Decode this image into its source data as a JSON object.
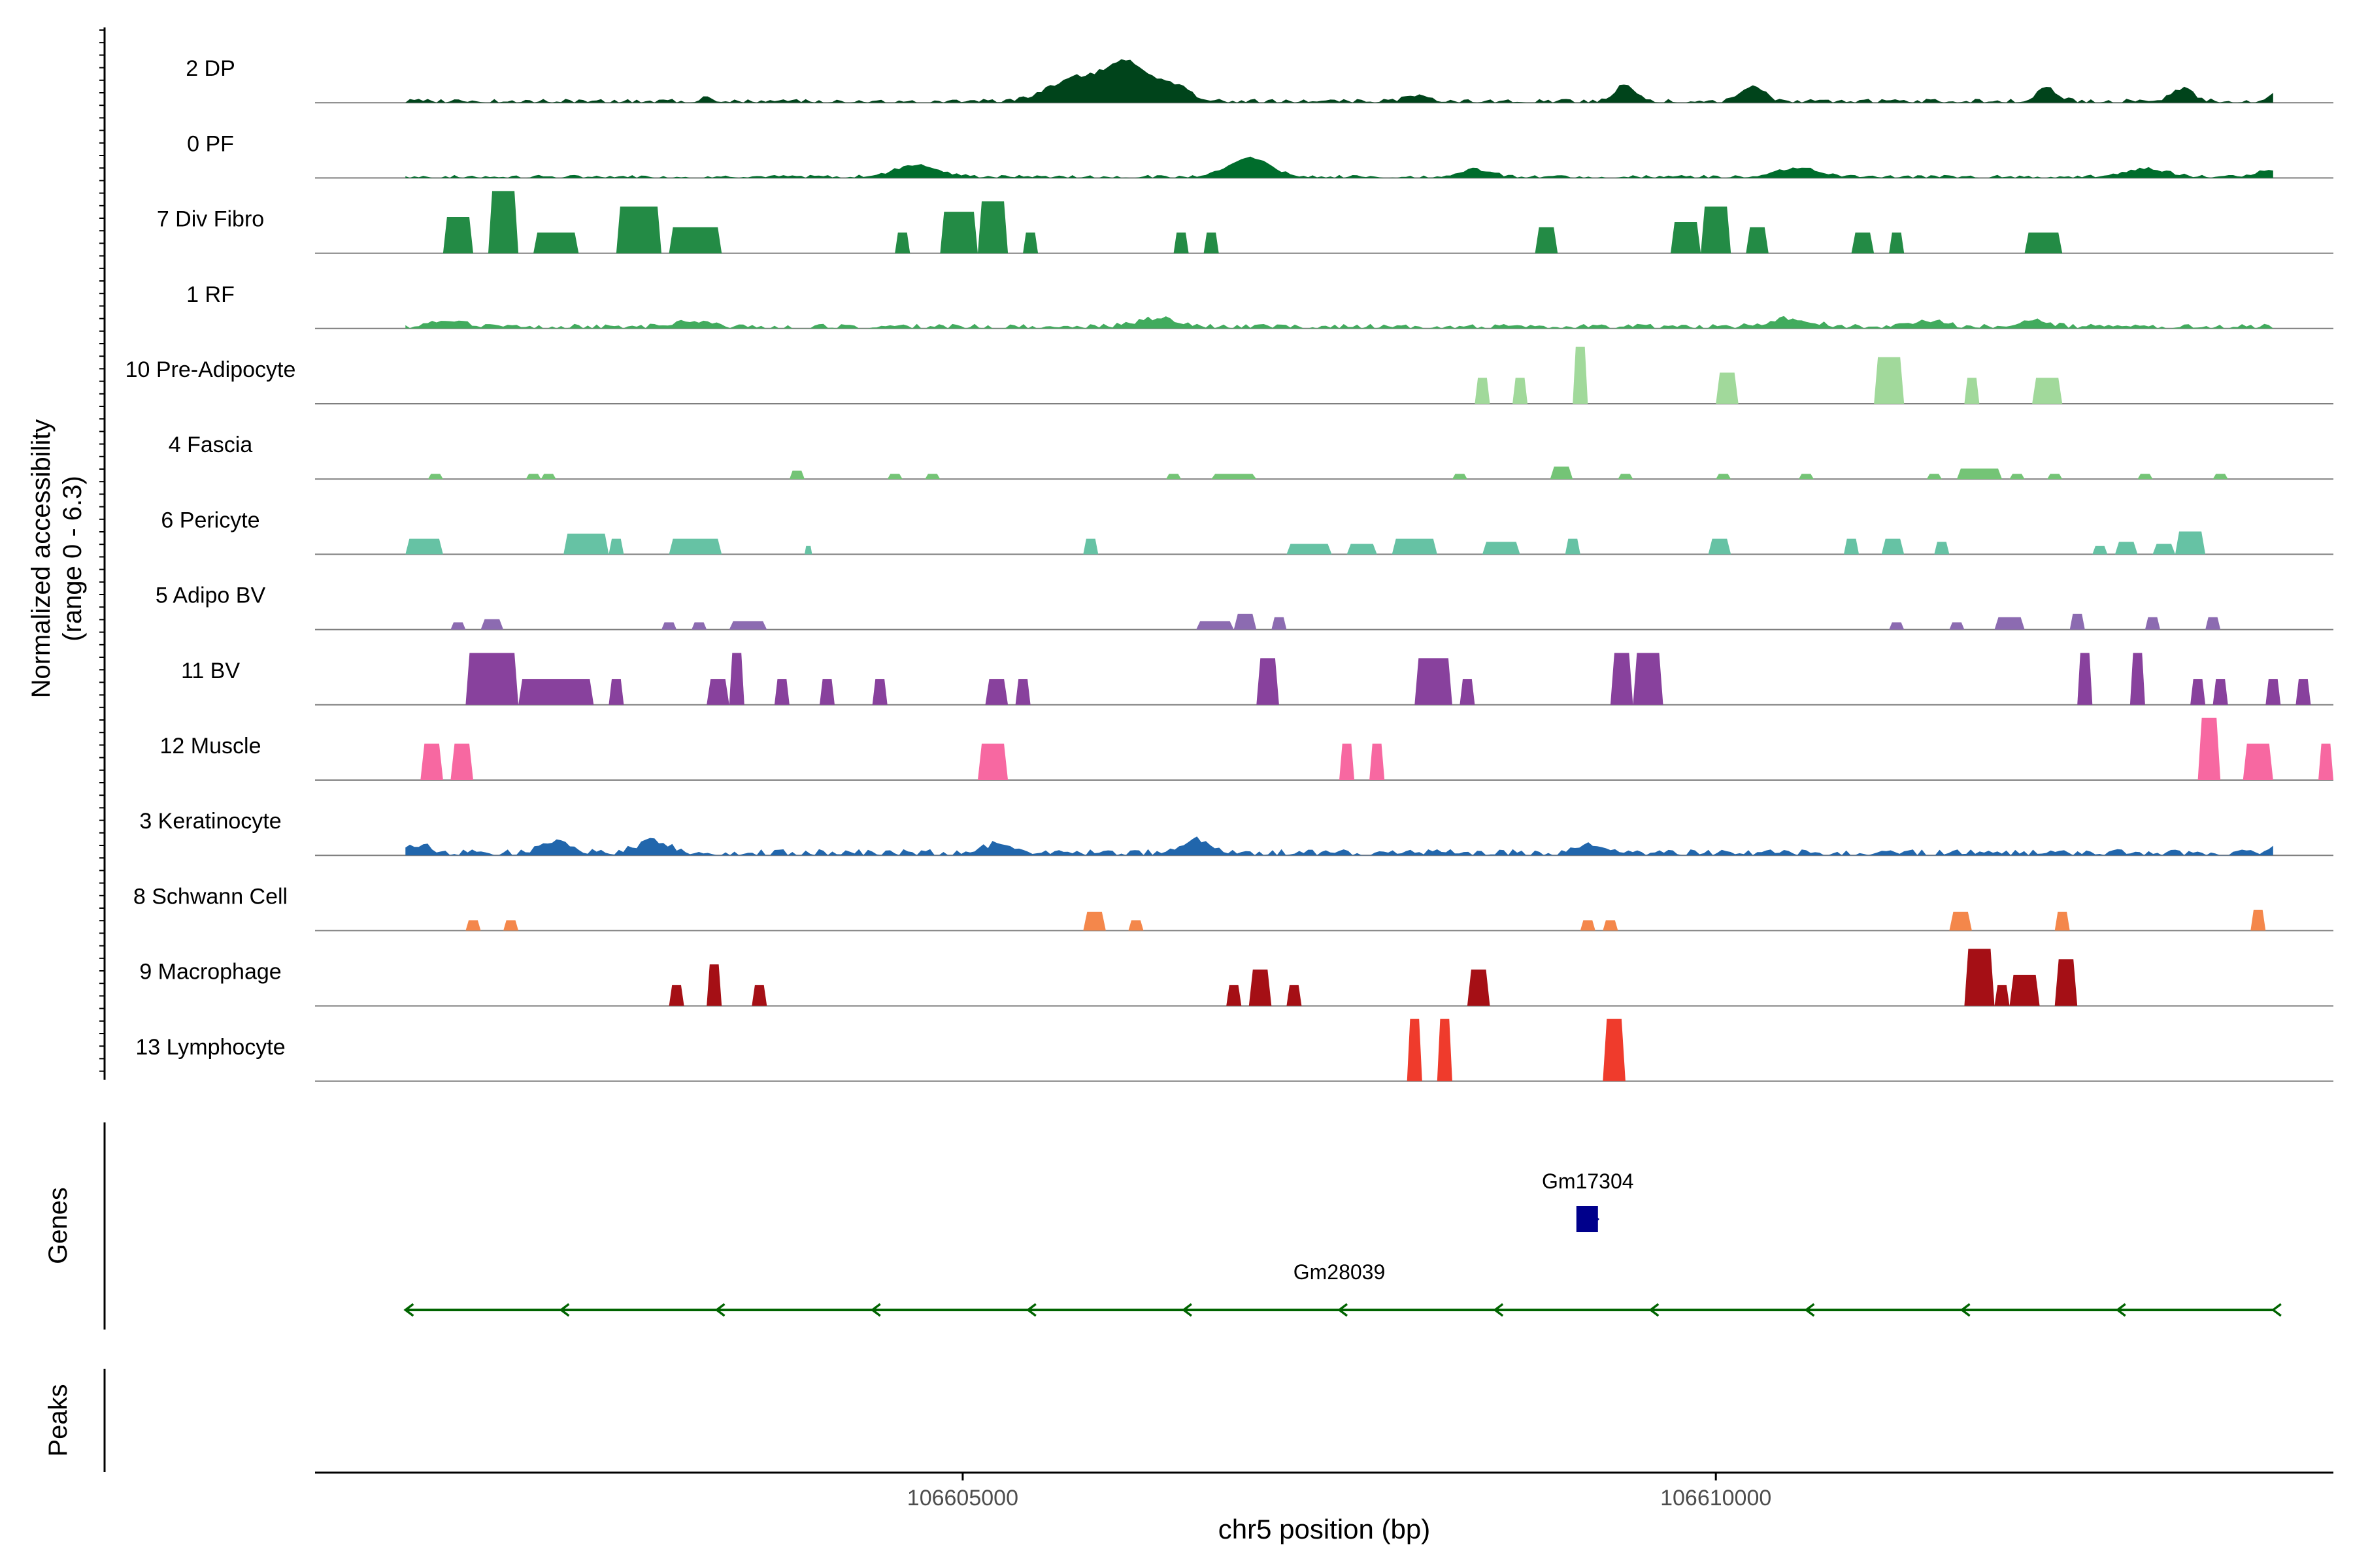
{
  "chart_data": {
    "type": "area",
    "chromosome": "chr5",
    "xlabel": "chr5 position (bp)",
    "ylabel_line1": "Normalized accessibility",
    "ylabel_line2": "(range 0 - 6.3)",
    "y_range": [
      0,
      6.3
    ],
    "xlim": [
      106600700,
      106614100
    ],
    "x_ticks": [
      {
        "value": 106605000,
        "label": "106605000"
      },
      {
        "value": 106610000,
        "label": "106610000"
      }
    ],
    "track_labels": {
      "genes": "Genes",
      "peaks": "Peaks"
    },
    "tracks": [
      {
        "name": "2 DP",
        "color": "#00441b",
        "kind": "continuous",
        "base": 0.25,
        "seed": 3,
        "peaks": [
          [
            106603300,
            0.6,
            50
          ],
          [
            106605750,
            2.2,
            250
          ],
          [
            106606100,
            3.6,
            200
          ],
          [
            106606400,
            1.4,
            150
          ],
          [
            106608000,
            0.5,
            100
          ],
          [
            106609400,
            1.6,
            100
          ],
          [
            106610250,
            1.6,
            100
          ],
          [
            106612200,
            1.2,
            100
          ],
          [
            106613100,
            1.2,
            100
          ],
          [
            106613800,
            1.8,
            100
          ]
        ]
      },
      {
        "name": "0 PF",
        "color": "#006d2c",
        "kind": "continuous",
        "base": 0.2,
        "seed": 7,
        "peaks": [
          [
            106604700,
            1.2,
            200
          ],
          [
            106606900,
            1.8,
            200
          ],
          [
            106608400,
            0.7,
            150
          ],
          [
            106610550,
            0.9,
            200
          ],
          [
            106612850,
            0.8,
            200
          ],
          [
            106613700,
            0.7,
            150
          ]
        ]
      },
      {
        "name": "7 Div Fibro",
        "color": "#238b45",
        "kind": "block",
        "blocks": [
          [
            106601550,
            106601750,
            3.5
          ],
          [
            106601850,
            106602050,
            6.0
          ],
          [
            106602150,
            106602450,
            2.0
          ],
          [
            106602700,
            106603000,
            4.5
          ],
          [
            106603050,
            106603400,
            2.5
          ],
          [
            106604550,
            106604650,
            2.0
          ],
          [
            106604850,
            106605100,
            4.0
          ],
          [
            106605100,
            106605300,
            5.0
          ],
          [
            106605400,
            106605500,
            2.0
          ],
          [
            106606400,
            106606500,
            2.0
          ],
          [
            106606600,
            106606700,
            2.0
          ],
          [
            106608800,
            106608950,
            2.5
          ],
          [
            106609700,
            106609900,
            3.0
          ],
          [
            106609900,
            106610100,
            4.5
          ],
          [
            106610200,
            106610350,
            2.5
          ],
          [
            106610900,
            106611050,
            2.0
          ],
          [
            106611150,
            106611250,
            2.0
          ],
          [
            106612050,
            106612300,
            2.0
          ]
        ]
      },
      {
        "name": "1 RF",
        "color": "#41ab5d",
        "kind": "continuous",
        "base": 0.3,
        "seed": 11,
        "peaks": [
          [
            106601600,
            0.6,
            150
          ],
          [
            106603200,
            0.6,
            150
          ],
          [
            106606300,
            0.8,
            200
          ],
          [
            106610500,
            0.8,
            200
          ],
          [
            106611400,
            0.6,
            150
          ],
          [
            106612100,
            0.6,
            150
          ]
        ]
      },
      {
        "name": "10 Pre-Adipocyte",
        "color": "#a1d99b",
        "kind": "block",
        "blocks": [
          [
            106608400,
            106608500,
            2.5
          ],
          [
            106608650,
            106608750,
            2.5
          ],
          [
            106609050,
            106609150,
            5.5
          ],
          [
            106610000,
            106610150,
            3.0
          ],
          [
            106611050,
            106611250,
            4.5
          ],
          [
            106611650,
            106611750,
            2.5
          ],
          [
            106612100,
            106612300,
            2.5
          ]
        ]
      },
      {
        "name": "4 Fascia",
        "color": "#74c476",
        "kind": "block",
        "blocks": [
          [
            106601450,
            106601550,
            0.5
          ],
          [
            106602100,
            106602200,
            0.5
          ],
          [
            106602200,
            106602300,
            0.5
          ],
          [
            106603850,
            106603950,
            0.8
          ],
          [
            106604500,
            106604600,
            0.5
          ],
          [
            106604750,
            106604850,
            0.5
          ],
          [
            106606350,
            106606450,
            0.5
          ],
          [
            106606650,
            106606950,
            0.5
          ],
          [
            106608250,
            106608350,
            0.5
          ],
          [
            106608900,
            106609050,
            1.2
          ],
          [
            106609350,
            106609450,
            0.5
          ],
          [
            106610000,
            106610100,
            0.5
          ],
          [
            106610550,
            106610650,
            0.5
          ],
          [
            106611400,
            106611500,
            0.5
          ],
          [
            106611600,
            106611900,
            1.0
          ],
          [
            106611950,
            106612050,
            0.5
          ],
          [
            106612200,
            106612300,
            0.5
          ],
          [
            106612800,
            106612900,
            0.5
          ],
          [
            106613300,
            106613400,
            0.5
          ]
        ]
      },
      {
        "name": "6 Pericyte",
        "color": "#66c2a4",
        "kind": "block",
        "blocks": [
          [
            106601300,
            106601550,
            1.5
          ],
          [
            106602350,
            106602650,
            2.0
          ],
          [
            106602650,
            106602750,
            1.5
          ],
          [
            106603050,
            106603400,
            1.5
          ],
          [
            106603950,
            106604000,
            0.8
          ],
          [
            106605800,
            106605900,
            1.5
          ],
          [
            106607150,
            106607450,
            1.0
          ],
          [
            106607550,
            106607750,
            1.0
          ],
          [
            106607850,
            106608150,
            1.5
          ],
          [
            106608450,
            106608700,
            1.2
          ],
          [
            106609000,
            106609100,
            1.5
          ],
          [
            106609950,
            106610100,
            1.5
          ],
          [
            106610850,
            106610950,
            1.5
          ],
          [
            106611100,
            106611250,
            1.5
          ],
          [
            106611450,
            106611550,
            1.2
          ],
          [
            106612500,
            106612600,
            0.8
          ],
          [
            106612650,
            106612800,
            1.2
          ],
          [
            106612900,
            106613050,
            1.0
          ],
          [
            106613050,
            106613250,
            2.2
          ]
        ]
      },
      {
        "name": "5 Adipo BV",
        "color": "#8c6bb1",
        "kind": "block",
        "blocks": [
          [
            106601600,
            106601700,
            0.7
          ],
          [
            106601800,
            106601950,
            1.0
          ],
          [
            106603000,
            106603100,
            0.7
          ],
          [
            106603200,
            106603300,
            0.7
          ],
          [
            106603450,
            106603700,
            0.8
          ],
          [
            106606550,
            106606800,
            0.8
          ],
          [
            106606800,
            106606950,
            1.5
          ],
          [
            106607050,
            106607150,
            1.2
          ],
          [
            106611150,
            106611250,
            0.7
          ],
          [
            106611550,
            106611650,
            0.7
          ],
          [
            106611850,
            106612050,
            1.2
          ],
          [
            106612350,
            106612450,
            1.5
          ],
          [
            106612850,
            106612950,
            1.2
          ],
          [
            106613250,
            106613350,
            1.2
          ]
        ]
      },
      {
        "name": "11 BV",
        "color": "#88419d",
        "kind": "block",
        "blocks": [
          [
            106601700,
            106602050,
            5.0
          ],
          [
            106602050,
            106602550,
            2.5
          ],
          [
            106602650,
            106602750,
            2.5
          ],
          [
            106603300,
            106603450,
            2.5
          ],
          [
            106603450,
            106603550,
            5.0
          ],
          [
            106603750,
            106603850,
            2.5
          ],
          [
            106604050,
            106604150,
            2.5
          ],
          [
            106604400,
            106604500,
            2.5
          ],
          [
            106605150,
            106605300,
            2.5
          ],
          [
            106605350,
            106605450,
            2.5
          ],
          [
            106606950,
            106607100,
            4.5
          ],
          [
            106608000,
            106608250,
            4.5
          ],
          [
            106608300,
            106608400,
            2.5
          ],
          [
            106609300,
            106609450,
            5.0
          ],
          [
            106609450,
            106609650,
            5.0
          ],
          [
            106612400,
            106612500,
            5.0
          ],
          [
            106612750,
            106612850,
            5.0
          ],
          [
            106613150,
            106613250,
            2.5
          ],
          [
            106613300,
            106613400,
            2.5
          ],
          [
            106613650,
            106613750,
            2.5
          ],
          [
            106613850,
            106613950,
            2.5
          ]
        ]
      },
      {
        "name": "12 Muscle",
        "color": "#f768a1",
        "kind": "block",
        "blocks": [
          [
            106601400,
            106601550,
            3.5
          ],
          [
            106601600,
            106601750,
            3.5
          ],
          [
            106605100,
            106605300,
            3.5
          ],
          [
            106607500,
            106607600,
            3.5
          ],
          [
            106607700,
            106607800,
            3.5
          ],
          [
            106613200,
            106613350,
            6.0
          ],
          [
            106613500,
            106613700,
            3.5
          ],
          [
            106614000,
            106614100,
            3.5
          ]
        ]
      },
      {
        "name": "3 Keratinocyte",
        "color": "#2166ac",
        "kind": "continuous",
        "base": 0.4,
        "seed": 13,
        "peaks": [
          [
            106601400,
            0.8,
            100
          ],
          [
            106602300,
            1.0,
            150
          ],
          [
            106602950,
            1.2,
            150
          ],
          [
            106605250,
            0.9,
            150
          ],
          [
            106606550,
            1.3,
            150
          ],
          [
            106609150,
            0.9,
            100
          ],
          [
            106613800,
            1.5,
            100
          ]
        ]
      },
      {
        "name": "8 Schwann Cell",
        "color": "#f4874b",
        "kind": "block",
        "blocks": [
          [
            106601700,
            106601800,
            1.0
          ],
          [
            106601950,
            106602050,
            1.0
          ],
          [
            106605800,
            106605950,
            1.8
          ],
          [
            106606100,
            106606200,
            1.0
          ],
          [
            106609100,
            106609200,
            1.0
          ],
          [
            106609250,
            106609350,
            1.0
          ],
          [
            106611550,
            106611700,
            1.8
          ],
          [
            106612250,
            106612350,
            1.8
          ],
          [
            106613550,
            106613650,
            2.0
          ]
        ]
      },
      {
        "name": "9 Macrophage",
        "color": "#a50f15",
        "kind": "block",
        "blocks": [
          [
            106603050,
            106603150,
            2.0
          ],
          [
            106603300,
            106603400,
            4.0
          ],
          [
            106603600,
            106603700,
            2.0
          ],
          [
            106606750,
            106606850,
            2.0
          ],
          [
            106606900,
            106607050,
            3.5
          ],
          [
            106607150,
            106607250,
            2.0
          ],
          [
            106608350,
            106608500,
            3.5
          ],
          [
            106611650,
            106611850,
            5.5
          ],
          [
            106611850,
            106611950,
            2.0
          ],
          [
            106611950,
            106612150,
            3.0
          ],
          [
            106612250,
            106612400,
            4.5
          ]
        ]
      },
      {
        "name": "13 Lymphocyte",
        "color": "#ef3b2c",
        "kind": "block",
        "blocks": [
          [
            106607950,
            106608050,
            6.0
          ],
          [
            106608150,
            106608250,
            6.0
          ],
          [
            106609250,
            106609400,
            6.0
          ]
        ]
      }
    ],
    "genes": [
      {
        "name": "Gm17304",
        "start": 106609100,
        "end": 106609200,
        "strand": "+",
        "color": "#00008b"
      },
      {
        "name": "Gm28039",
        "start": 106601300,
        "end": 106613700,
        "strand": "-",
        "color": "#006400"
      }
    ],
    "peaks": []
  }
}
